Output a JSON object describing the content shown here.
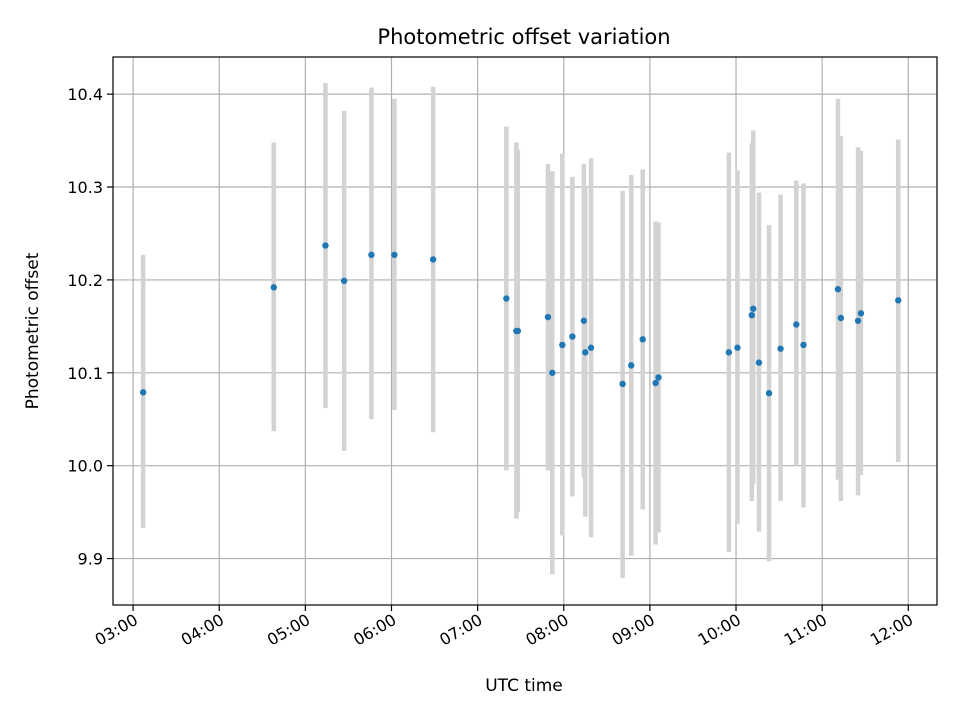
{
  "chart_data": {
    "type": "scatter",
    "title": "Photometric offset variation",
    "xlabel": "UTC time",
    "ylabel": "Photometric offset",
    "xlim": [
      "02:46",
      "12:20"
    ],
    "ylim": [
      9.85,
      10.44
    ],
    "grid": true,
    "x_ticks": [
      "03:00",
      "04:00",
      "05:00",
      "06:00",
      "07:00",
      "08:00",
      "09:00",
      "10:00",
      "11:00",
      "12:00"
    ],
    "y_ticks": [
      9.9,
      10.0,
      10.1,
      10.2,
      10.3,
      10.4
    ],
    "y_tick_labels": [
      "9.9",
      "10.0",
      "10.1",
      "10.2",
      "10.3",
      "10.4"
    ],
    "colors": {
      "points": "#1f77b4",
      "error_bars": "#d3d3d3"
    },
    "series": [
      {
        "points": [
          {
            "x": "03:07",
            "y": 10.079,
            "lo": 9.933,
            "hi": 10.227
          },
          {
            "x": "04:38",
            "y": 10.192,
            "lo": 10.037,
            "hi": 10.348
          },
          {
            "x": "05:14",
            "y": 10.237,
            "lo": 10.062,
            "hi": 10.412
          },
          {
            "x": "05:27",
            "y": 10.199,
            "lo": 10.016,
            "hi": 10.382
          },
          {
            "x": "05:46",
            "y": 10.227,
            "lo": 10.05,
            "hi": 10.407
          },
          {
            "x": "06:02",
            "y": 10.227,
            "lo": 10.06,
            "hi": 10.395
          },
          {
            "x": "06:29",
            "y": 10.222,
            "lo": 10.036,
            "hi": 10.408
          },
          {
            "x": "07:20",
            "y": 10.18,
            "lo": 9.995,
            "hi": 10.365
          },
          {
            "x": "07:27",
            "y": 10.145,
            "lo": 9.943,
            "hi": 10.348
          },
          {
            "x": "07:28",
            "y": 10.145,
            "lo": 9.95,
            "hi": 10.34
          },
          {
            "x": "07:49",
            "y": 10.16,
            "lo": 9.995,
            "hi": 10.325
          },
          {
            "x": "07:52",
            "y": 10.1,
            "lo": 9.883,
            "hi": 10.317
          },
          {
            "x": "07:59",
            "y": 10.13,
            "lo": 9.925,
            "hi": 10.336
          },
          {
            "x": "08:06",
            "y": 10.139,
            "lo": 9.967,
            "hi": 10.311
          },
          {
            "x": "08:14",
            "y": 10.156,
            "lo": 9.988,
            "hi": 10.325
          },
          {
            "x": "08:15",
            "y": 10.122,
            "lo": 9.945,
            "hi": 10.3
          },
          {
            "x": "08:19",
            "y": 10.127,
            "lo": 9.923,
            "hi": 10.331
          },
          {
            "x": "08:41",
            "y": 10.088,
            "lo": 9.879,
            "hi": 10.296
          },
          {
            "x": "08:47",
            "y": 10.108,
            "lo": 9.903,
            "hi": 10.313
          },
          {
            "x": "08:55",
            "y": 10.136,
            "lo": 9.953,
            "hi": 10.319
          },
          {
            "x": "09:04",
            "y": 10.089,
            "lo": 9.915,
            "hi": 10.263
          },
          {
            "x": "09:06",
            "y": 10.095,
            "lo": 9.928,
            "hi": 10.262
          },
          {
            "x": "09:55",
            "y": 10.122,
            "lo": 9.907,
            "hi": 10.337
          },
          {
            "x": "10:01",
            "y": 10.127,
            "lo": 9.937,
            "hi": 10.318
          },
          {
            "x": "10:11",
            "y": 10.162,
            "lo": 9.962,
            "hi": 10.347
          },
          {
            "x": "10:12",
            "y": 10.169,
            "lo": 9.98,
            "hi": 10.361
          },
          {
            "x": "10:16",
            "y": 10.111,
            "lo": 9.929,
            "hi": 10.294
          },
          {
            "x": "10:23",
            "y": 10.078,
            "lo": 9.897,
            "hi": 10.259
          },
          {
            "x": "10:31",
            "y": 10.126,
            "lo": 9.962,
            "hi": 10.292
          },
          {
            "x": "10:42",
            "y": 10.152,
            "lo": 10.0,
            "hi": 10.307
          },
          {
            "x": "10:47",
            "y": 10.13,
            "lo": 9.955,
            "hi": 10.304
          },
          {
            "x": "11:11",
            "y": 10.19,
            "lo": 9.985,
            "hi": 10.395
          },
          {
            "x": "11:13",
            "y": 10.159,
            "lo": 9.962,
            "hi": 10.355
          },
          {
            "x": "11:25",
            "y": 10.156,
            "lo": 9.968,
            "hi": 10.343
          },
          {
            "x": "11:27",
            "y": 10.164,
            "lo": 9.99,
            "hi": 10.339
          },
          {
            "x": "11:53",
            "y": 10.178,
            "lo": 10.004,
            "hi": 10.351
          }
        ]
      }
    ]
  }
}
